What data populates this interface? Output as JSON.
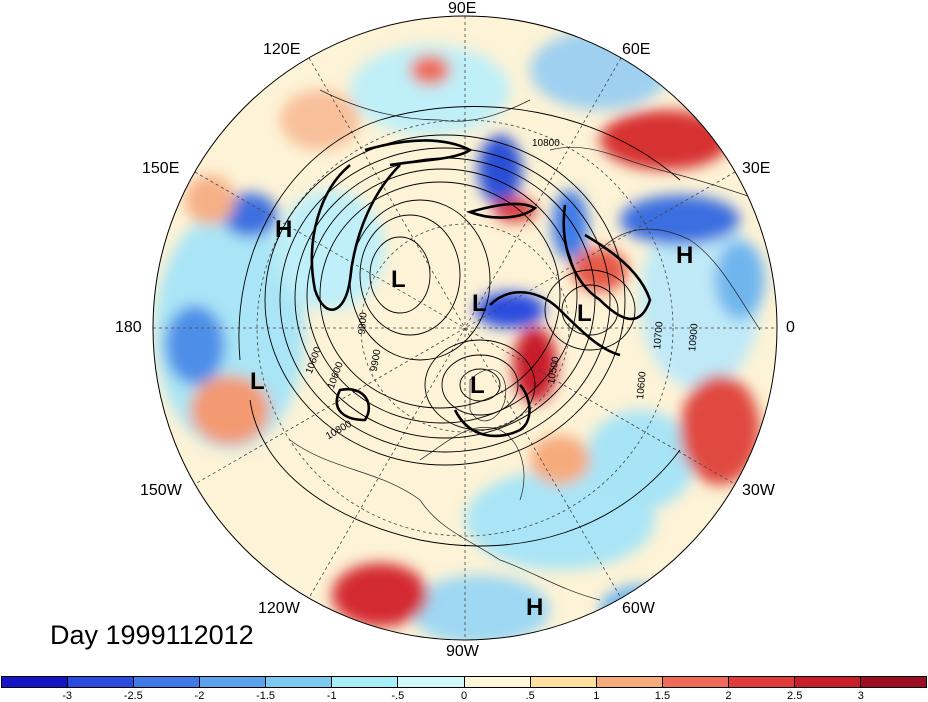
{
  "map": {
    "title": "Day 1999112012",
    "projection": "north-polar-stereographic",
    "longitude_labels": [
      "90E",
      "60E",
      "30E",
      "0",
      "30W",
      "60W",
      "90W",
      "120W",
      "150W",
      "180",
      "150E",
      "120E"
    ],
    "pressure_centers": [
      "H",
      "H",
      "L",
      "L",
      "L",
      "L",
      "L",
      "H"
    ],
    "contour_labels": [
      "10800",
      "10600",
      "9800",
      "9900",
      "10500",
      "10700",
      "10900",
      "10600",
      "10600",
      "10800"
    ],
    "colors": {
      "strong_negative": "#1a1ad0",
      "negative": "#4a9fe8",
      "weak_negative": "#a9f0f8",
      "weak_positive": "#fdf0c0",
      "positive": "#f3896a",
      "strong_positive": "#c81e2a"
    }
  },
  "colorbar": {
    "ticks": [
      "-3",
      "-2.5",
      "-2",
      "-1.5",
      "-1",
      "-.5",
      "0",
      ".5",
      "1",
      "1.5",
      "2",
      "2.5",
      "3"
    ],
    "colors": [
      "#1515c8",
      "#2a4bdf",
      "#3f7ae6",
      "#5aa3ea",
      "#7ec9f0",
      "#a7eef7",
      "#d2f7fb",
      "#fdf7d8",
      "#fbe09f",
      "#f6ab7d",
      "#ef6a58",
      "#e13a3a",
      "#c81e2a",
      "#9b0d1f"
    ]
  }
}
